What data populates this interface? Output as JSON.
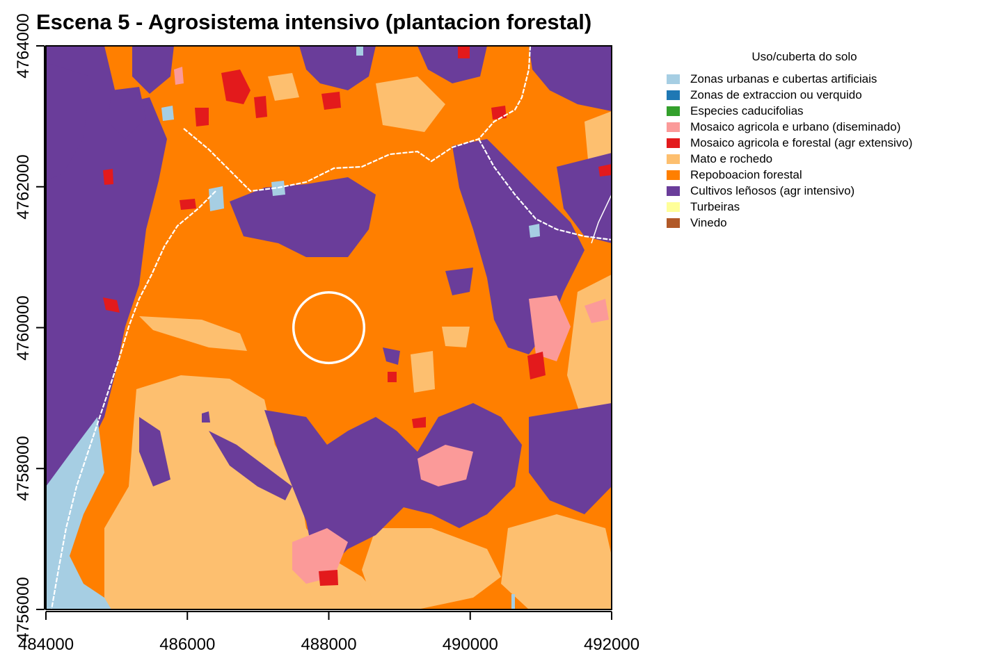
{
  "title": "Escena 5 - Agrosistema intensivo (plantacion forestal)",
  "x_axis": {
    "ticks": [
      "484000",
      "486000",
      "488000",
      "490000",
      "492000"
    ],
    "range": [
      484000,
      492000
    ]
  },
  "y_axis": {
    "ticks": [
      "4756000",
      "4758000",
      "4760000",
      "4762000",
      "4764000"
    ],
    "range": [
      4756000,
      4764000
    ]
  },
  "legend": {
    "title": "Uso/cuberta do solo",
    "items": [
      {
        "label": "Zonas urbanas e cubertas artificiais",
        "color": "#a6cee3"
      },
      {
        "label": "Zonas de extraccion ou verquido",
        "color": "#1f78b4"
      },
      {
        "label": "Especies caducifolias",
        "color": "#33a02c"
      },
      {
        "label": "Mosaico agricola e urbano (diseminado)",
        "color": "#fb9a99"
      },
      {
        "label": "Mosaico agricola e forestal (agr extensivo)",
        "color": "#e31a1c"
      },
      {
        "label": "Mato e rochedo",
        "color": "#fdbf6f"
      },
      {
        "label": "Repoboacion forestal",
        "color": "#ff7f00"
      },
      {
        "label": "Cultivos leñosos (agr intensivo)",
        "color": "#6a3d9a"
      },
      {
        "label": "Turbeiras",
        "color": "#ffff99"
      },
      {
        "label": "Vinedo",
        "color": "#b15928"
      }
    ]
  },
  "map": {
    "center_marker": {
      "x": 488000,
      "y": 4760000,
      "radius": 500
    }
  }
}
